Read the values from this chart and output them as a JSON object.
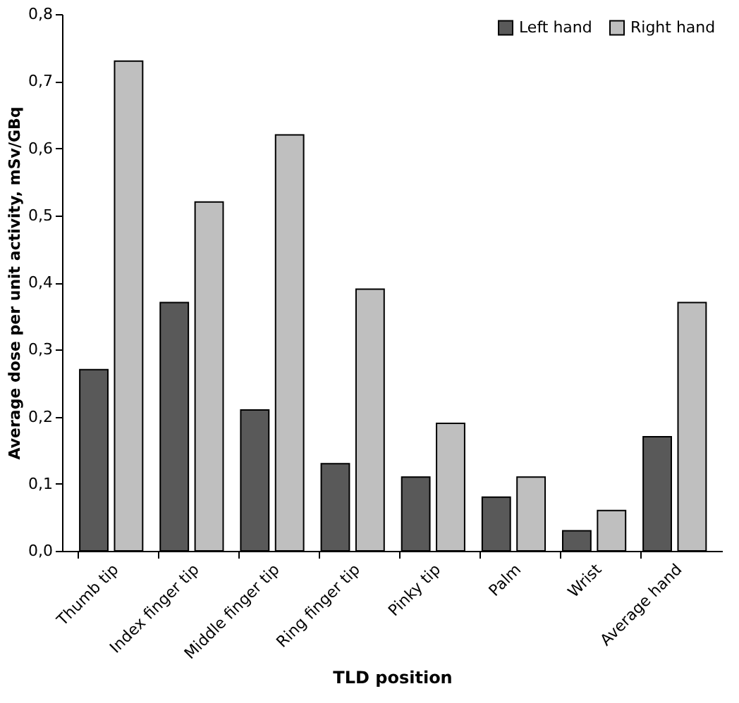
{
  "chart_data": {
    "type": "bar",
    "xlabel": "TLD position",
    "ylabel": "Average dose per unit activity, mSv/GBq",
    "categories": [
      "Thumb tip",
      "Index finger tip",
      "Middle finger tip",
      "Ring finger tip",
      "Pinky tip",
      "Palm",
      "Wrist",
      "Average hand"
    ],
    "series": [
      {
        "name": "Left hand",
        "color": "#595959",
        "values": [
          0.27,
          0.37,
          0.21,
          0.13,
          0.11,
          0.08,
          0.03,
          0.17
        ]
      },
      {
        "name": "Right hand",
        "color": "#bfbfbf",
        "values": [
          0.73,
          0.52,
          0.62,
          0.39,
          0.19,
          0.11,
          0.06,
          0.37
        ]
      }
    ],
    "ylim": [
      0,
      0.8
    ],
    "yticks": [
      {
        "value": 0,
        "label": "0,0"
      },
      {
        "value": 0.1,
        "label": "0,1"
      },
      {
        "value": 0.2,
        "label": "0,2"
      },
      {
        "value": 0.3,
        "label": "0,3"
      },
      {
        "value": 0.4,
        "label": "0,4"
      },
      {
        "value": 0.5,
        "label": "0,5"
      },
      {
        "value": 0.6,
        "label": "0,6"
      },
      {
        "value": 0.7,
        "label": "0,7"
      },
      {
        "value": 0.8,
        "label": "0,8"
      }
    ],
    "grid": false,
    "legend": "top right"
  }
}
